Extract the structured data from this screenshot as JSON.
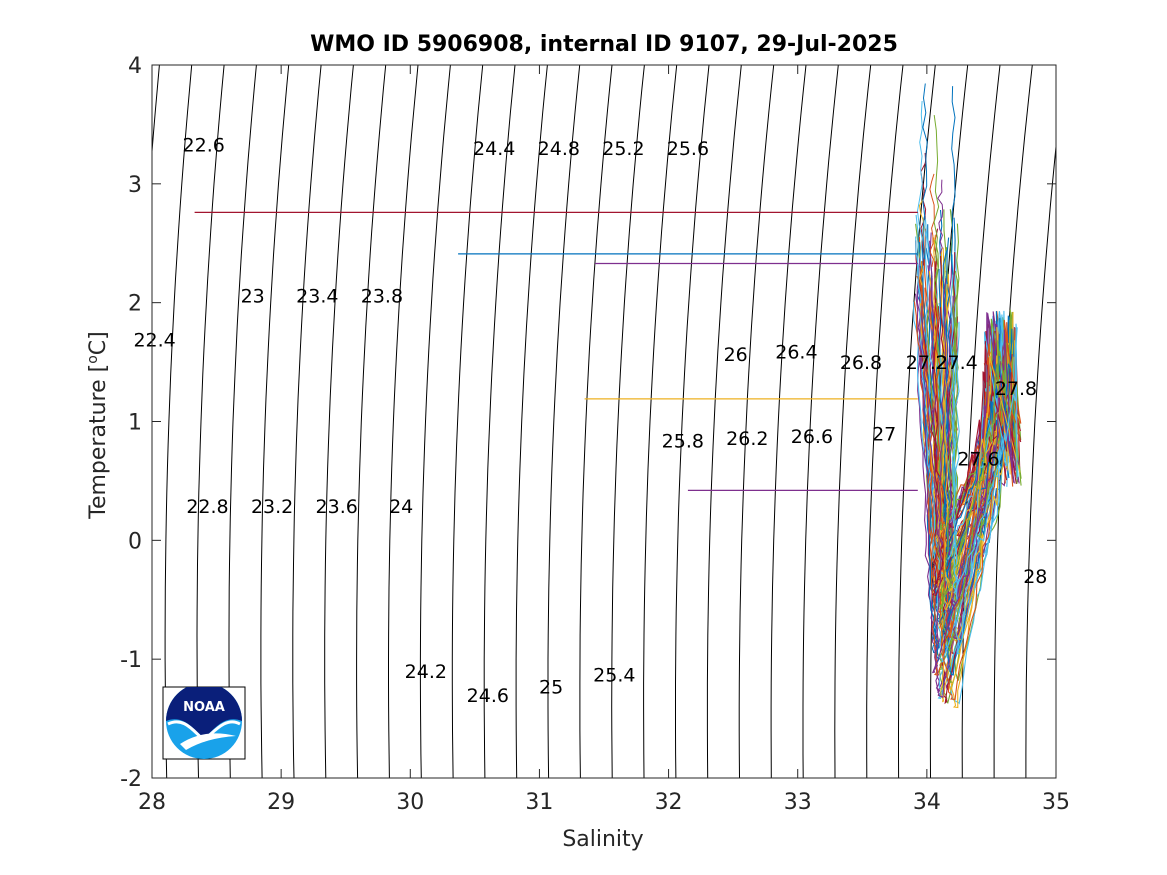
{
  "chart_data": {
    "type": "line",
    "title": "WMO ID 5906908, internal ID 9107, 29-Jul-2025",
    "xlabel": "Salinity",
    "ylabel_main": "Temperature [",
    "ylabel_sup": "o",
    "ylabel_end": "C]",
    "xlim": [
      28,
      35
    ],
    "ylim": [
      -2,
      4
    ],
    "x_ticks": [
      28,
      29,
      30,
      31,
      32,
      33,
      34,
      35
    ],
    "y_ticks": [
      -2,
      -1,
      0,
      1,
      2,
      3,
      4
    ],
    "x_tick_labels": [
      "28",
      "29",
      "30",
      "31",
      "32",
      "33",
      "34",
      "35"
    ],
    "y_tick_labels": [
      "-2",
      "-1",
      "0",
      "1",
      "2",
      "3",
      "4"
    ],
    "grid": false,
    "density_contours": {
      "line_color": "#000000",
      "levels": [
        22.4,
        22.6,
        22.8,
        23.0,
        23.2,
        23.4,
        23.6,
        23.8,
        24.0,
        24.2,
        24.4,
        24.6,
        24.8,
        25.0,
        25.2,
        25.4,
        25.6,
        25.8,
        26.0,
        26.2,
        26.4,
        26.6,
        26.8,
        27.0,
        27.2,
        27.4,
        27.6,
        27.8,
        28.0
      ],
      "labels": [
        {
          "text": "22.4",
          "s": 28.02,
          "t": 1.69
        },
        {
          "text": "22.6",
          "s": 28.4,
          "t": 3.33
        },
        {
          "text": "22.8",
          "s": 28.43,
          "t": 0.29
        },
        {
          "text": "23",
          "s": 28.78,
          "t": 2.06
        },
        {
          "text": "23.2",
          "s": 28.93,
          "t": 0.29
        },
        {
          "text": "23.4",
          "s": 29.28,
          "t": 2.06
        },
        {
          "text": "23.6",
          "s": 29.43,
          "t": 0.29
        },
        {
          "text": "23.8",
          "s": 29.78,
          "t": 2.06
        },
        {
          "text": "24",
          "s": 29.93,
          "t": 0.29
        },
        {
          "text": "24.2",
          "s": 30.12,
          "t": -1.1
        },
        {
          "text": "24.4",
          "s": 30.65,
          "t": 3.3
        },
        {
          "text": "24.6",
          "s": 30.6,
          "t": -1.3
        },
        {
          "text": "24.8",
          "s": 31.15,
          "t": 3.3
        },
        {
          "text": "25",
          "s": 31.09,
          "t": -1.23
        },
        {
          "text": "25.2",
          "s": 31.65,
          "t": 3.3
        },
        {
          "text": "25.4",
          "s": 31.58,
          "t": -1.13
        },
        {
          "text": "25.6",
          "s": 32.15,
          "t": 3.3
        },
        {
          "text": "25.8",
          "s": 32.11,
          "t": 0.84
        },
        {
          "text": "26",
          "s": 32.52,
          "t": 1.57
        },
        {
          "text": "26.2",
          "s": 32.61,
          "t": 0.86
        },
        {
          "text": "26.4",
          "s": 32.99,
          "t": 1.59
        },
        {
          "text": "26.6",
          "s": 33.11,
          "t": 0.88
        },
        {
          "text": "26.8",
          "s": 33.49,
          "t": 1.5
        },
        {
          "text": "27",
          "s": 33.67,
          "t": 0.9
        },
        {
          "text": "27.2",
          "s": 34.0,
          "t": 1.5
        },
        {
          "text": "27.4",
          "s": 34.23,
          "t": 1.5
        },
        {
          "text": "27.6",
          "s": 34.4,
          "t": 0.69
        },
        {
          "text": "27.8",
          "s": 34.69,
          "t": 1.28
        },
        {
          "text": "28",
          "s": 34.84,
          "t": -0.3
        }
      ]
    },
    "horizontal_segments": [
      {
        "color": "#a2142f",
        "s0": 28.33,
        "s1": 33.93,
        "t": 2.76
      },
      {
        "color": "#0072bd",
        "s0": 30.37,
        "s1": 33.93,
        "t": 2.41
      },
      {
        "color": "#7e2f8e",
        "s0": 31.43,
        "s1": 33.93,
        "t": 2.33
      },
      {
        "color": "#edb120",
        "s0": 31.35,
        "s1": 33.93,
        "t": 1.19
      },
      {
        "color": "#7e2f8e",
        "s0": 32.15,
        "s1": 33.93,
        "t": 0.42
      }
    ],
    "profiles": {
      "count": 90,
      "colors": [
        "#0072bd",
        "#d95319",
        "#edb120",
        "#7e2f8e",
        "#77ac30",
        "#4dbeee",
        "#a2142f"
      ],
      "x_range": [
        33.85,
        34.73
      ],
      "y_range": [
        -1.42,
        3.9
      ]
    }
  },
  "logo": {
    "text": "NOAA",
    "dark_blue": "#0a1f7a",
    "light_blue": "#19a2ea"
  }
}
